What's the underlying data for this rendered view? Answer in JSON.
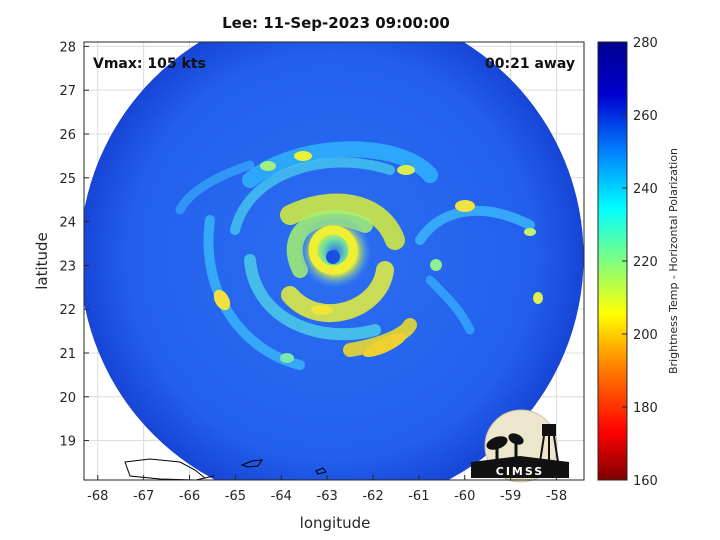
{
  "figure": {
    "title": "Lee: 11-Sep-2023 09:00:00",
    "vmax_label": "Vmax: 105 kts",
    "time_offset_label": "00:21 away",
    "xlabel": "longitude",
    "ylabel": "latitude",
    "colorbar_label": "Brightness Temp - Horizontal Polarization",
    "logo_text": "CIMSS"
  },
  "map": {
    "xlim": [
      -68.3,
      -57.4
    ],
    "ylim": [
      18.1,
      28.1
    ],
    "x_ticks": [
      -68,
      -67,
      -66,
      -65,
      -64,
      -63,
      -62,
      -61,
      -60,
      -59,
      -58
    ],
    "y_ticks": [
      19,
      20,
      21,
      22,
      23,
      24,
      25,
      26,
      27,
      28
    ],
    "grid": true,
    "swath_center": [
      -62.9,
      23.2
    ],
    "storm_center": [
      -62.7,
      23.2
    ],
    "colors": {
      "background_cold": "#1f5aeb",
      "swath_edge": "#1540d8",
      "land_outline": "#000000"
    }
  },
  "colorbar": {
    "min": 160,
    "max": 280,
    "ticks": [
      160,
      180,
      200,
      220,
      240,
      260,
      280
    ],
    "colormap": [
      "#7f0000",
      "#ff0000",
      "#ff8c00",
      "#ffff00",
      "#80ff80",
      "#00ffff",
      "#0080ff",
      "#0000d0",
      "#00008f"
    ]
  }
}
